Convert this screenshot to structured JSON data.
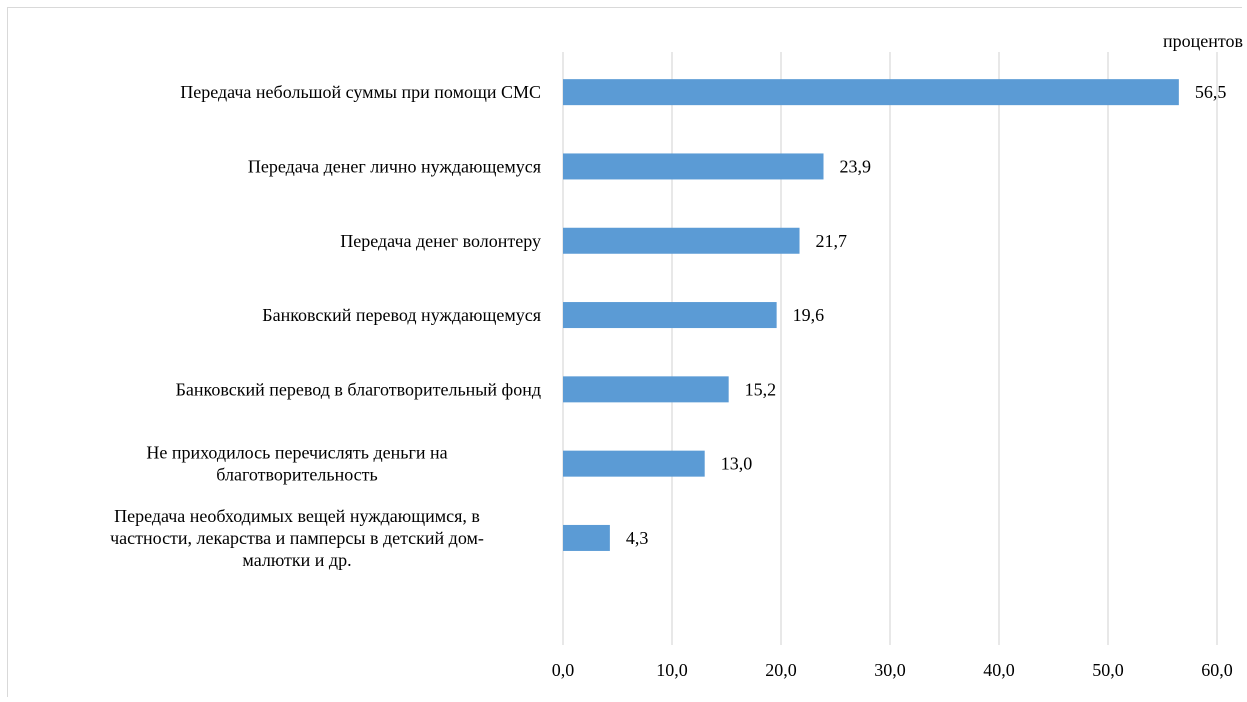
{
  "chart_data": {
    "type": "bar",
    "orientation": "horizontal",
    "unit_label": "процентов",
    "categories": [
      [
        "Передача небольшой суммы при помощи СМС"
      ],
      [
        "Передача денег лично нуждающемуся"
      ],
      [
        "Передача денег волонтеру"
      ],
      [
        "Банковский перевод нуждающемуся"
      ],
      [
        "Банковский перевод в благотворительный фонд"
      ],
      [
        "Не приходилось перечислять деньги на",
        "благотворительность"
      ],
      [
        "Передача необходимых вещей нуждающимся, в",
        "частности, лекарства и памперсы в детский дом-",
        "малютки и др."
      ]
    ],
    "values": [
      56.5,
      23.9,
      21.7,
      19.6,
      15.2,
      13.0,
      4.3
    ],
    "value_labels": [
      "56,5",
      "23,9",
      "21,7",
      "19,6",
      "15,2",
      "13,0",
      "4,3"
    ],
    "ticks": [
      0,
      10,
      20,
      30,
      40,
      50,
      60
    ],
    "tick_labels": [
      "0,0",
      "10,0",
      "20,0",
      "30,0",
      "40,0",
      "50,0",
      "60,0"
    ],
    "xlim": [
      0,
      60
    ],
    "grid": "vertical",
    "bar_color": "#5b9bd5",
    "grid_color": "#d9d9d9"
  }
}
